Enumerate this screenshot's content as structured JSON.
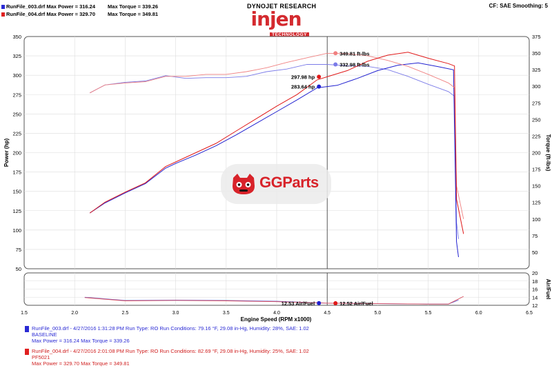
{
  "header": {
    "runs": [
      {
        "text": "RunFile_003.drf Max Power = 316.24",
        "torque": "Max Torque = 339.26",
        "color": "#2a2ad4"
      },
      {
        "text": "RunFile_004.drf Max Power = 329.70",
        "torque": "Max Torque = 349.81",
        "color": "#e02020"
      }
    ],
    "brand_title": "DYNOJET RESEARCH",
    "brand_logo": "injen",
    "brand_sub": "TECHNOLOGY",
    "cf": "CF: SAE  Smoothing: 5"
  },
  "watermark": {
    "text": "GGParts",
    "icon": "gg-skull-icon"
  },
  "legend": [
    {
      "line1": "RunFile_003.drf - 4/27/2016 1:31:28 PM  Run Type: RO  Run Conditions: 79.16 °F, 29.08 in-Hg,  Humidity:  28%, SAE: 1.02",
      "line2": "BASELINE",
      "line3": "Max Power = 316.24  Max Torque = 339.26",
      "color": "#2a2ad4"
    },
    {
      "line1": "RunFile_004.drf - 4/27/2016 2:01:08 PM  Run Type: RO  Run Conditions: 82.69 °F, 29.08 in-Hg,  Humidity:  25%, SAE: 1.02",
      "line2": "PF5021",
      "line3": "Max Power = 329.70  Max Torque = 349.81",
      "color": "#e02020"
    }
  ],
  "chart_data": {
    "type": "line",
    "x_label": "Engine Speed (RPM x1000)",
    "y_label_left": "Power (hp)",
    "y_label_right": "Torque (ft-lbs)",
    "y_label_af": "Air/Fuel",
    "xlim": [
      1.5,
      6.5
    ],
    "ylim_power": [
      50,
      350
    ],
    "ylim_torque": [
      25,
      375
    ],
    "ylim_af": [
      12,
      20
    ],
    "x_ticks": [
      "1.5",
      "2.0",
      "2.5",
      "3.0",
      "3.5",
      "4.0",
      "4.5",
      "5.0",
      "5.5",
      "6.0",
      "6.5"
    ],
    "power_ticks": [
      "50",
      "75",
      "100",
      "125",
      "150",
      "175",
      "200",
      "225",
      "250",
      "275",
      "300",
      "325",
      "350"
    ],
    "torque_ticks": [
      "50",
      "75",
      "100",
      "125",
      "150",
      "175",
      "200",
      "225",
      "250",
      "275",
      "300",
      "325",
      "350",
      "375"
    ],
    "af_ticks": [
      "12",
      "14",
      "16",
      "18",
      "20"
    ],
    "cursor_rpm": 4.5,
    "series": [
      {
        "name": "RunFile_003.drf",
        "color": "#2020d0",
        "light": "#7a7ae8",
        "af_color": "#6b6bd8",
        "power": [
          [
            2.15,
            122
          ],
          [
            2.3,
            135
          ],
          [
            2.5,
            148
          ],
          [
            2.7,
            160
          ],
          [
            2.9,
            180
          ],
          [
            3.0,
            186
          ],
          [
            3.2,
            197
          ],
          [
            3.4,
            209
          ],
          [
            3.6,
            223
          ],
          [
            3.8,
            238
          ],
          [
            4.0,
            253
          ],
          [
            4.2,
            268
          ],
          [
            4.4,
            283.64
          ],
          [
            4.6,
            287
          ],
          [
            4.8,
            296
          ],
          [
            5.0,
            306
          ],
          [
            5.2,
            313
          ],
          [
            5.4,
            316
          ],
          [
            5.6,
            311
          ],
          [
            5.75,
            307
          ],
          [
            5.78,
            85
          ],
          [
            5.8,
            65
          ]
        ],
        "torque": [
          [
            2.15,
            290
          ],
          [
            2.3,
            302
          ],
          [
            2.5,
            306
          ],
          [
            2.7,
            308
          ],
          [
            2.9,
            316
          ],
          [
            3.1,
            312
          ],
          [
            3.3,
            313
          ],
          [
            3.5,
            313
          ],
          [
            3.7,
            315
          ],
          [
            3.9,
            322
          ],
          [
            4.1,
            326
          ],
          [
            4.3,
            333
          ],
          [
            4.5,
            332.98
          ],
          [
            4.7,
            331
          ],
          [
            4.9,
            330
          ],
          [
            5.1,
            325
          ],
          [
            5.3,
            315
          ],
          [
            5.5,
            303
          ],
          [
            5.7,
            292
          ],
          [
            5.76,
            285
          ],
          [
            5.78,
            95
          ],
          [
            5.8,
            70
          ]
        ],
        "af": [
          [
            2.1,
            14.0
          ],
          [
            2.5,
            13.2
          ],
          [
            3.0,
            13.3
          ],
          [
            3.5,
            13.2
          ],
          [
            4.0,
            13.0
          ],
          [
            4.5,
            12.53
          ],
          [
            5.0,
            12.4
          ],
          [
            5.5,
            12.3
          ],
          [
            5.7,
            12.3
          ],
          [
            5.8,
            13.3
          ]
        ]
      },
      {
        "name": "RunFile_004.drf",
        "color": "#e01818",
        "light": "#f08080",
        "af_color": "#d84a5a",
        "power": [
          [
            2.15,
            122
          ],
          [
            2.3,
            136
          ],
          [
            2.5,
            149
          ],
          [
            2.7,
            161
          ],
          [
            2.9,
            182
          ],
          [
            3.0,
            188
          ],
          [
            3.2,
            200
          ],
          [
            3.4,
            212
          ],
          [
            3.6,
            228
          ],
          [
            3.8,
            244
          ],
          [
            4.0,
            260
          ],
          [
            4.2,
            275
          ],
          [
            4.4,
            294
          ],
          [
            4.5,
            297.98
          ],
          [
            4.7,
            306
          ],
          [
            4.9,
            318
          ],
          [
            5.1,
            326
          ],
          [
            5.3,
            329.7
          ],
          [
            5.5,
            322
          ],
          [
            5.7,
            315
          ],
          [
            5.76,
            312
          ],
          [
            5.78,
            140
          ],
          [
            5.85,
            95
          ]
        ],
        "torque": [
          [
            2.15,
            290
          ],
          [
            2.3,
            302
          ],
          [
            2.5,
            305
          ],
          [
            2.7,
            307
          ],
          [
            2.9,
            315
          ],
          [
            3.1,
            315
          ],
          [
            3.3,
            318
          ],
          [
            3.5,
            318
          ],
          [
            3.7,
            322
          ],
          [
            3.9,
            328
          ],
          [
            4.1,
            336
          ],
          [
            4.3,
            343
          ],
          [
            4.5,
            349.81
          ],
          [
            4.7,
            349
          ],
          [
            4.9,
            346
          ],
          [
            5.1,
            339
          ],
          [
            5.3,
            330
          ],
          [
            5.5,
            318
          ],
          [
            5.7,
            305
          ],
          [
            5.76,
            298
          ],
          [
            5.78,
            150
          ],
          [
            5.85,
            100
          ]
        ],
        "af": [
          [
            2.1,
            13.9
          ],
          [
            2.5,
            13.1
          ],
          [
            3.0,
            13.2
          ],
          [
            3.5,
            13.1
          ],
          [
            4.0,
            12.9
          ],
          [
            4.5,
            12.52
          ],
          [
            5.0,
            12.4
          ],
          [
            5.5,
            12.3
          ],
          [
            5.7,
            12.3
          ],
          [
            5.85,
            14.2
          ]
        ]
      }
    ],
    "annotations": [
      {
        "text": "349.81 ft-lbs",
        "series": 1,
        "kind": "torque"
      },
      {
        "text": "332.98 ft-lbs",
        "series": 0,
        "kind": "torque"
      },
      {
        "text": "297.98 hp",
        "series": 1,
        "kind": "power"
      },
      {
        "text": "283.64 hp",
        "series": 0,
        "kind": "power"
      },
      {
        "text": "12.53 Air/Fuel",
        "series": 0,
        "kind": "af"
      },
      {
        "text": "12.52 Air/Fuel",
        "series": 1,
        "kind": "af"
      }
    ]
  }
}
